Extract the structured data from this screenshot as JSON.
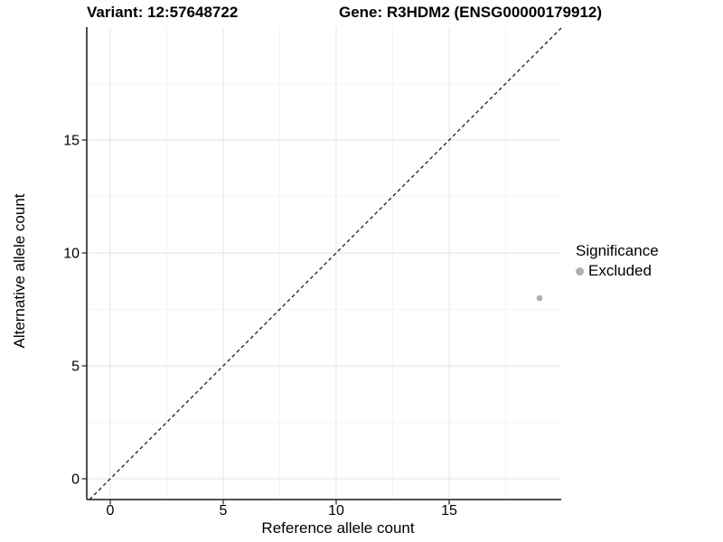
{
  "chart_data": {
    "type": "scatter",
    "titles": {
      "left": "Variant: 12:57648722",
      "right": "Gene: R3HDM2 (ENSG00000179912)"
    },
    "xlabel": "Reference allele count",
    "ylabel": "Alternative allele count",
    "x_ticks": [
      0,
      5,
      10,
      15
    ],
    "y_ticks": [
      0,
      5,
      10,
      15
    ],
    "x_minor": [
      2.5,
      7.5,
      12.5,
      17.5
    ],
    "y_minor": [
      2.5,
      7.5,
      12.5,
      17.5
    ],
    "xlim": [
      -1.04,
      19.96
    ],
    "ylim": [
      -0.92,
      20.0
    ],
    "grid": "major+minor",
    "identity_line": {
      "equation": "y = x",
      "style": "dashed"
    },
    "points": [
      {
        "x": 19,
        "y": 8,
        "significance": "Excluded"
      }
    ],
    "legend": {
      "title": "Significance",
      "position": "right",
      "items": [
        {
          "label": "Excluded",
          "color": "#b0b0b0"
        }
      ]
    },
    "colors": {
      "background": "#ffffff",
      "point": "#b0b0b0",
      "axis_line": "#3a3a3a",
      "tick_mark": "#333333",
      "grid_major": "#e8e8e8",
      "grid_minor": "#f4f4f4",
      "identity_line": "#1a1a1a",
      "text": "#000000"
    }
  }
}
